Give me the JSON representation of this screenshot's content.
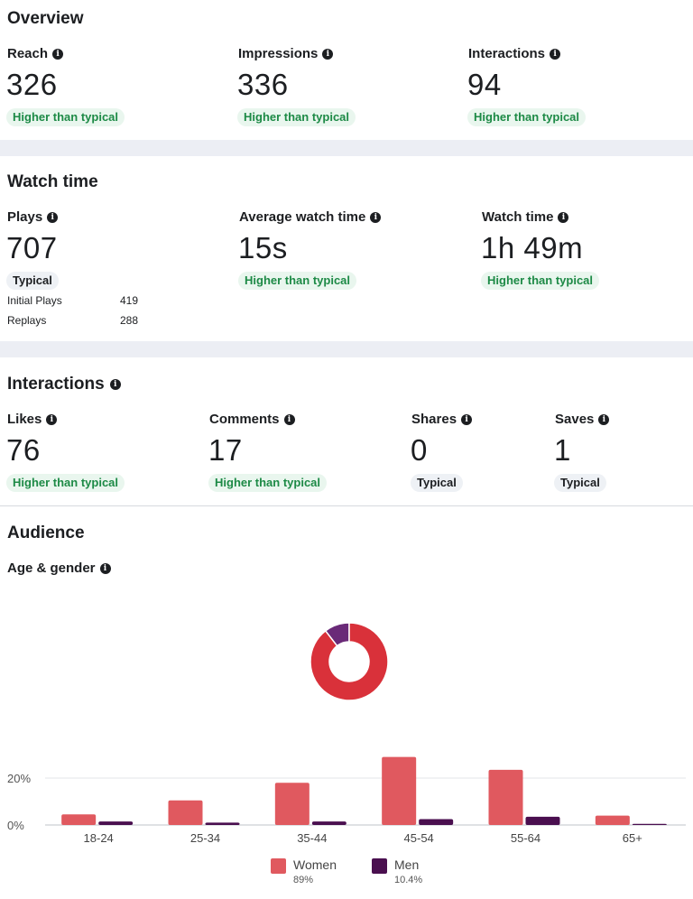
{
  "overview": {
    "title": "Overview",
    "metrics": [
      {
        "label": "Reach",
        "value": "326",
        "badge": "Higher than typical"
      },
      {
        "label": "Impressions",
        "value": "336",
        "badge": "Higher than typical"
      },
      {
        "label": "Interactions",
        "value": "94",
        "badge": "Higher than typical"
      }
    ]
  },
  "watch_time": {
    "title": "Watch time",
    "metrics": [
      {
        "label": "Plays",
        "value": "707",
        "badge": "Typical"
      },
      {
        "label": "Average watch time",
        "value": "15s",
        "badge": "Higher than typical"
      },
      {
        "label": "Watch time",
        "value": "1h 49m",
        "badge": "Higher than typical"
      }
    ],
    "breakdown": [
      {
        "label": "Initial Plays",
        "value": "419"
      },
      {
        "label": "Replays",
        "value": "288"
      }
    ]
  },
  "interactions": {
    "title": "Interactions",
    "metrics": [
      {
        "label": "Likes",
        "value": "76",
        "badge": "Higher than typical"
      },
      {
        "label": "Comments",
        "value": "17",
        "badge": "Higher than typical"
      },
      {
        "label": "Shares",
        "value": "0",
        "badge": "Typical"
      },
      {
        "label": "Saves",
        "value": "1",
        "badge": "Typical"
      }
    ]
  },
  "audience": {
    "title": "Audience",
    "subtitle": "Age & gender"
  },
  "colors": {
    "women": "#e0595f",
    "men": "#4a0f4f",
    "good": "#1d8a46"
  },
  "chart_data": [
    {
      "type": "pie",
      "labels": [
        "Women",
        "Men"
      ],
      "values": [
        89,
        10.4
      ],
      "donut": true
    },
    {
      "type": "bar",
      "categories": [
        "18-24",
        "25-34",
        "35-44",
        "45-54",
        "55-64",
        "65+"
      ],
      "series": [
        {
          "name": "Women",
          "values": [
            4.5,
            10.5,
            18,
            29,
            23.5,
            4
          ]
        },
        {
          "name": "Men",
          "values": [
            1.5,
            1,
            1.5,
            2.5,
            3.5,
            0.5
          ]
        }
      ],
      "yticks": [
        "0%",
        "20%"
      ],
      "ylim": [
        0,
        32
      ],
      "legend": [
        {
          "name": "Women",
          "pct": "89%"
        },
        {
          "name": "Men",
          "pct": "10.4%"
        }
      ],
      "legend_position": "bottom"
    }
  ]
}
